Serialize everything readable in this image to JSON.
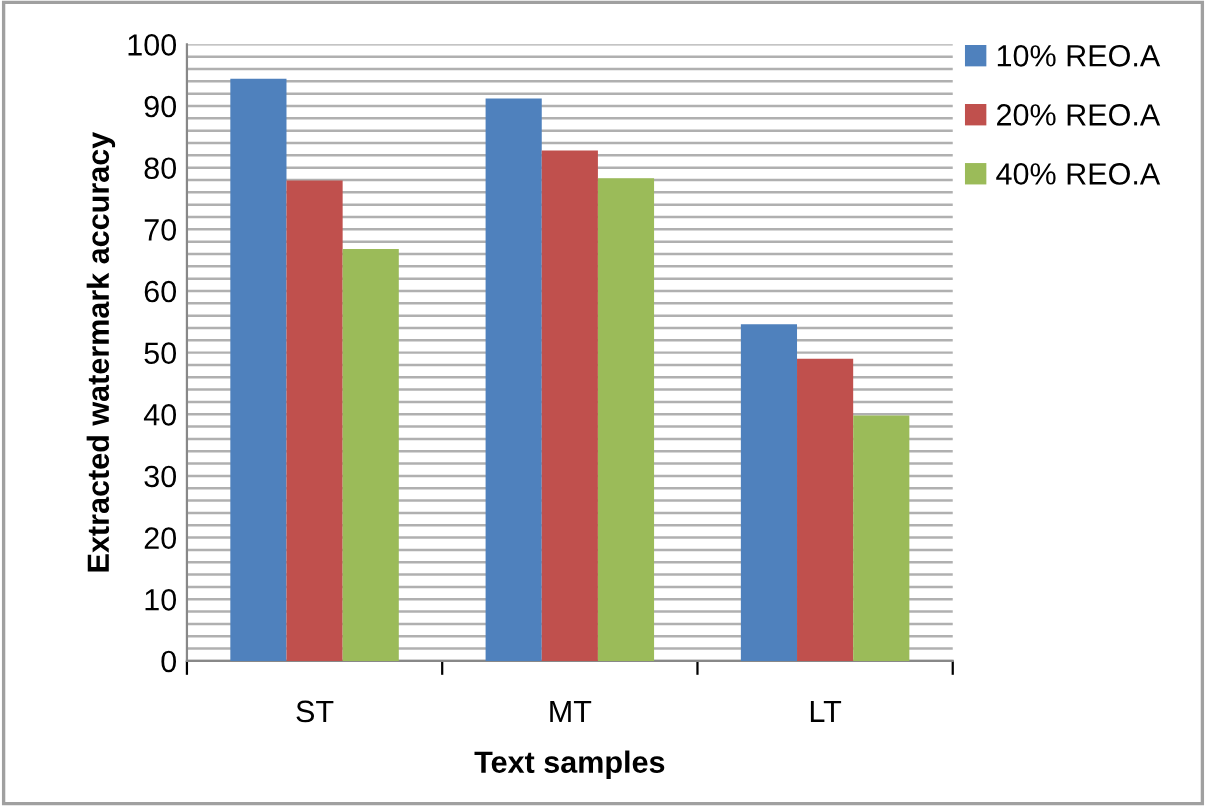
{
  "chart_data": {
    "type": "bar",
    "xlabel": "Text samples",
    "ylabel": "Extracted watermark accuracy",
    "categories": [
      "ST",
      "MT",
      "LT"
    ],
    "series": [
      {
        "name": "10% REO.A",
        "color": "#4f81bd",
        "values": [
          94.4,
          91.2,
          54.6
        ]
      },
      {
        "name": "20% REO.A",
        "color": "#c0504d",
        "values": [
          77.9,
          82.8,
          49.0
        ]
      },
      {
        "name": "40% REO.A",
        "color": "#9bbb59",
        "values": [
          66.8,
          78.3,
          39.8
        ]
      }
    ],
    "ylim": [
      0,
      100
    ],
    "yticks": [
      0,
      {
        "value": 2,
        "label": null
      },
      {
        "value": 4,
        "label": null
      },
      {
        "value": 6,
        "label": null
      },
      {
        "value": 8,
        "label": null
      },
      10,
      {
        "value": 12,
        "label": null
      },
      {
        "value": 14,
        "label": null
      },
      {
        "value": 16,
        "label": null
      },
      {
        "value": 18,
        "label": null
      },
      20,
      {
        "value": 22,
        "label": null
      },
      {
        "value": 24,
        "label": null
      },
      {
        "value": 26,
        "label": null
      },
      {
        "value": 28,
        "label": null
      },
      30,
      {
        "value": 32,
        "label": null
      },
      {
        "value": 34,
        "label": null
      },
      {
        "value": 36,
        "label": null
      },
      {
        "value": 38,
        "label": null
      },
      40,
      {
        "value": 42,
        "label": null
      },
      {
        "value": 44,
        "label": null
      },
      {
        "value": 46,
        "label": null
      },
      {
        "value": 48,
        "label": null
      },
      50,
      {
        "value": 52,
        "label": null
      },
      {
        "value": 54,
        "label": null
      },
      {
        "value": 56,
        "label": null
      },
      {
        "value": 58,
        "label": null
      },
      60,
      {
        "value": 62,
        "label": null
      },
      {
        "value": 64,
        "label": null
      },
      {
        "value": 66,
        "label": null
      },
      {
        "value": 68,
        "label": null
      },
      70,
      {
        "value": 72,
        "label": null
      },
      {
        "value": 74,
        "label": null
      },
      {
        "value": 76,
        "label": null
      },
      {
        "value": 78,
        "label": null
      },
      80,
      {
        "value": 82,
        "label": null
      },
      {
        "value": 84,
        "label": null
      },
      {
        "value": 86,
        "label": null
      },
      {
        "value": 88,
        "label": null
      },
      90,
      {
        "value": 92,
        "label": null
      },
      {
        "value": 94,
        "label": null
      },
      {
        "value": 96,
        "label": null
      },
      {
        "value": 98,
        "label": null
      },
      100
    ],
    "grid": "y",
    "legend": "right"
  }
}
